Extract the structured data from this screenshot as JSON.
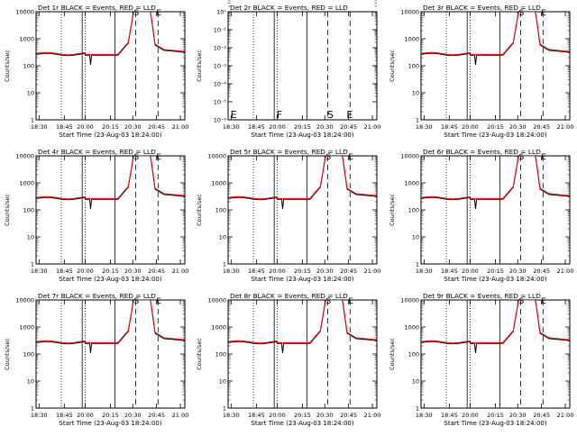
{
  "x_axis": {
    "tick_labels": [
      "18:30",
      "18:45",
      "20:00",
      "20:15",
      "20:30",
      "20:45",
      "21:00"
    ],
    "xlabel": "Start Time (23-Aug-03 18:24:00)"
  },
  "y_axis": {
    "ylabel": "Counts/sec"
  },
  "colors": {
    "events": "#000000",
    "lld": "#ff0000"
  },
  "chart_data": [
    {
      "type": "line",
      "title": "Det 1r BLACK = Events, RED = LLD",
      "scale": "log",
      "ylim": [
        1,
        10000
      ],
      "yticks": [
        "1",
        "10",
        "100",
        "1000",
        "10000"
      ],
      "markers": [
        "S",
        "E"
      ],
      "series": [
        {
          "name": "Events",
          "color": "#000000"
        },
        {
          "name": "LLD",
          "color": "#ff0000"
        }
      ]
    },
    {
      "type": "line",
      "title": "Det 2r BLACK = Events, RED = LLD",
      "scale": "log",
      "ylim": [
        1e-06,
        1
      ],
      "yticks": [
        "10⁰",
        "10⁻¹",
        "10⁻²",
        "10⁻³",
        "10⁻⁴",
        "10⁻⁵",
        "10⁻⁶"
      ],
      "markers": [
        "E",
        "F",
        "S",
        "E"
      ],
      "series": []
    },
    {
      "type": "line",
      "title": "Det 3r BLACK = Events, RED = LLD",
      "scale": "log",
      "ylim": [
        1,
        10000
      ],
      "yticks": [
        "1",
        "10",
        "100",
        "1000",
        "10000"
      ],
      "markers": [
        "S",
        "E"
      ],
      "series": [
        {
          "name": "Events",
          "color": "#000000"
        },
        {
          "name": "LLD",
          "color": "#ff0000"
        }
      ]
    },
    {
      "type": "line",
      "title": "Det 4r BLACK = Events, RED = LLD",
      "scale": "log",
      "ylim": [
        1,
        10000
      ],
      "yticks": [
        "1",
        "10",
        "100",
        "1000",
        "10000"
      ],
      "markers": [
        "S",
        "E"
      ],
      "series": [
        {
          "name": "Events",
          "color": "#000000"
        },
        {
          "name": "LLD",
          "color": "#ff0000"
        }
      ]
    },
    {
      "type": "line",
      "title": "Det 5r BLACK = Events, RED = LLD",
      "scale": "log",
      "ylim": [
        1,
        10000
      ],
      "yticks": [
        "1",
        "10",
        "100",
        "1000",
        "10000"
      ],
      "markers": [
        "S",
        "E"
      ],
      "series": [
        {
          "name": "Events",
          "color": "#000000"
        },
        {
          "name": "LLD",
          "color": "#ff0000"
        }
      ]
    },
    {
      "type": "line",
      "title": "Det 6r BLACK = Events, RED = LLD",
      "scale": "log",
      "ylim": [
        1,
        10000
      ],
      "yticks": [
        "1",
        "10",
        "100",
        "1000",
        "10000"
      ],
      "markers": [
        "S",
        "E"
      ],
      "series": [
        {
          "name": "Events",
          "color": "#000000"
        },
        {
          "name": "LLD",
          "color": "#ff0000"
        }
      ]
    },
    {
      "type": "line",
      "title": "Det 7r BLACK = Events, RED = LLD",
      "scale": "log",
      "ylim": [
        1,
        10000
      ],
      "yticks": [
        "1",
        "10",
        "100",
        "1000",
        "10000"
      ],
      "markers": [
        "S",
        "E"
      ],
      "series": [
        {
          "name": "Events",
          "color": "#000000"
        },
        {
          "name": "LLD",
          "color": "#ff0000"
        }
      ]
    },
    {
      "type": "line",
      "title": "Det 8r BLACK = Events, RED = LLD",
      "scale": "log",
      "ylim": [
        1,
        10000
      ],
      "yticks": [
        "1",
        "10",
        "100",
        "1000",
        "10000"
      ],
      "markers": [
        "S",
        "E"
      ],
      "series": [
        {
          "name": "Events",
          "color": "#000000"
        },
        {
          "name": "LLD",
          "color": "#ff0000"
        }
      ]
    },
    {
      "type": "line",
      "title": "Det 9r BLACK = Events, RED = LLD",
      "scale": "log",
      "ylim": [
        1,
        10000
      ],
      "yticks": [
        "1",
        "10",
        "100",
        "1000",
        "10000"
      ],
      "markers": [
        "S",
        "E"
      ],
      "series": [
        {
          "name": "Events",
          "color": "#000000"
        },
        {
          "name": "LLD",
          "color": "#ff0000"
        }
      ]
    }
  ]
}
